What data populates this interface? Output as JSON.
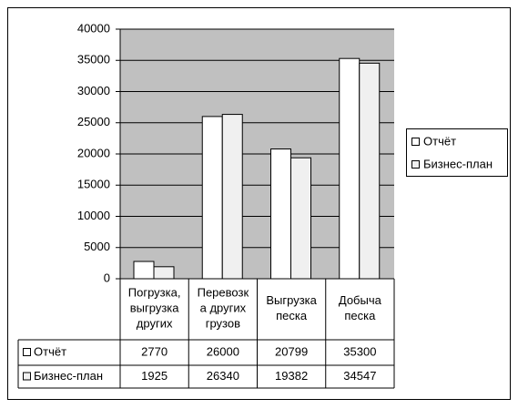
{
  "chart_data": {
    "type": "bar",
    "categories": [
      "Погрузка,\nвыгрузка\nдругих",
      "Перевозк\nа других\nгрузов",
      "Выгрузка\nпеска",
      "Добыча\nпеска"
    ],
    "series": [
      {
        "name": "Отчёт",
        "color": "#ffffff",
        "values": [
          2770,
          26000,
          20799,
          35300
        ]
      },
      {
        "name": "Бизнес-план",
        "color": "#f0f0f0",
        "values": [
          1925,
          26340,
          19382,
          34547
        ]
      }
    ],
    "ylim": [
      0,
      40000
    ],
    "yticks": [
      0,
      5000,
      10000,
      15000,
      20000,
      25000,
      30000,
      35000,
      40000
    ],
    "grid": true,
    "plot_background": "#c0c0c0",
    "legend": "right"
  }
}
